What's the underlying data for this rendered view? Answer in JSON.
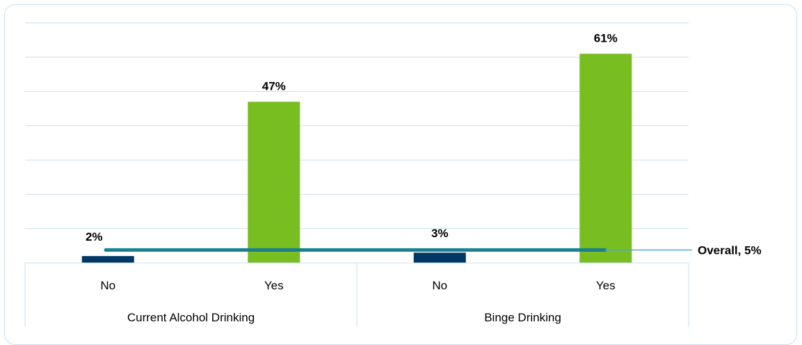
{
  "chart_data": {
    "type": "bar",
    "groups": [
      {
        "label": "Current Alcohol Drinking",
        "categories": [
          {
            "label": "No",
            "value": 2,
            "value_label": "2%",
            "color": "#003865"
          },
          {
            "label": "Yes",
            "value": 47,
            "value_label": "47%",
            "color": "#78be21"
          }
        ]
      },
      {
        "label": "Binge Drinking",
        "categories": [
          {
            "label": "No",
            "value": 3,
            "value_label": "3%",
            "color": "#003865"
          },
          {
            "label": "Yes",
            "value": 61,
            "value_label": "61%",
            "color": "#78be21"
          }
        ]
      }
    ],
    "reference_line": {
      "value": 5,
      "label": "Overall, 5%",
      "color": "#1a7f8e"
    },
    "ylim": [
      0,
      70
    ],
    "grid": true,
    "y_axis_labels": false,
    "colors": {
      "grid": "#c7dff0",
      "frame": "#c7dff0"
    }
  }
}
